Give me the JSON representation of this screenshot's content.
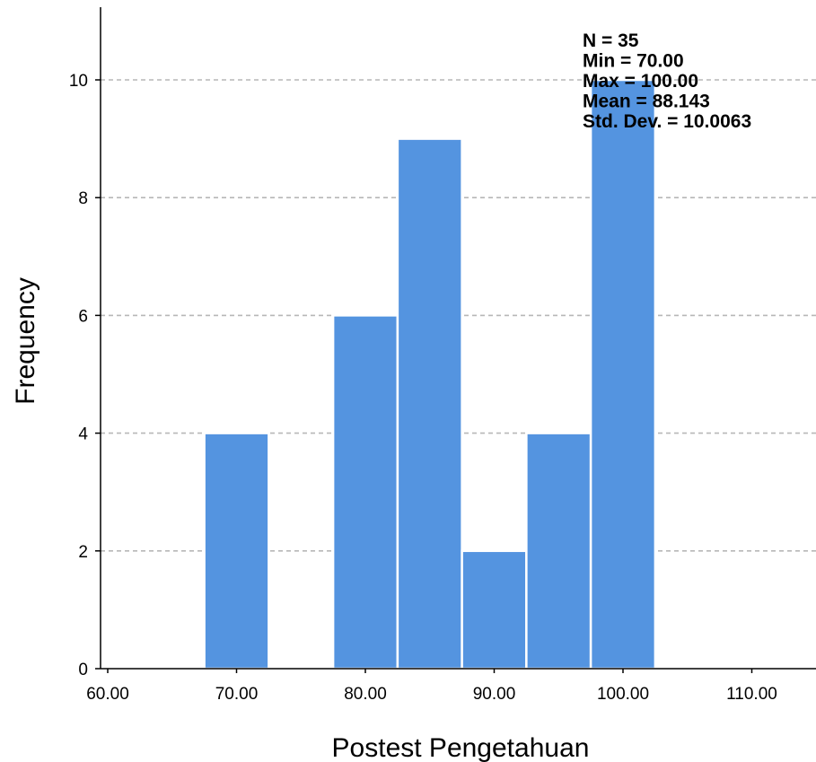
{
  "chart_data": {
    "type": "bar",
    "subtype": "histogram",
    "xlabel": "Postest Pengetahuan",
    "ylabel": "Frequency",
    "x_ticks": [
      "60.00",
      "70.00",
      "80.00",
      "90.00",
      "100.00",
      "110.00"
    ],
    "x_tick_values": [
      60,
      70,
      80,
      90,
      100,
      110
    ],
    "y_ticks": [
      "0",
      "2",
      "4",
      "6",
      "8",
      "10"
    ],
    "y_tick_values": [
      0,
      2,
      4,
      6,
      8,
      10
    ],
    "xlim": [
      58.5,
      114
    ],
    "ylim": [
      0,
      11.2
    ],
    "bin_width": 5,
    "bins": [
      {
        "start": 67.5,
        "end": 72.5,
        "count": 4
      },
      {
        "start": 72.5,
        "end": 77.5,
        "count": 0
      },
      {
        "start": 77.5,
        "end": 82.5,
        "count": 6
      },
      {
        "start": 82.5,
        "end": 87.5,
        "count": 9
      },
      {
        "start": 87.5,
        "end": 92.5,
        "count": 2
      },
      {
        "start": 92.5,
        "end": 97.5,
        "count": 4
      },
      {
        "start": 97.5,
        "end": 102.5,
        "count": 10
      }
    ],
    "stats_lines": [
      "N = 35",
      "Min = 70.00",
      "Max = 100.00",
      "Mean = 88.143",
      "Std. Dev. = 10.0063"
    ],
    "grid": true,
    "colors": {
      "bar_fill": "#5494e0",
      "bar_edge": "#ffffff",
      "grid": "#b7b7b7",
      "axis": "#000000"
    }
  }
}
